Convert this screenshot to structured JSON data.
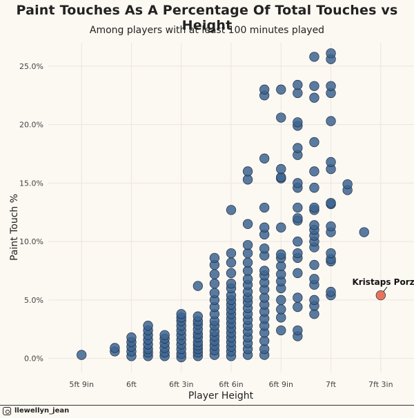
{
  "chart_data": {
    "type": "scatter",
    "title": "Paint Touches As A Percentage Of Total Touches vs Height",
    "subtitle": "Among players with at least 100 minutes played",
    "xlabel": "Player Height",
    "ylabel": "Paint Touch %",
    "x_unit": "inches",
    "xlim": [
      67,
      89
    ],
    "ylim": [
      -1.2,
      27
    ],
    "x_ticks": [
      {
        "value": 69,
        "label": "5ft 9in"
      },
      {
        "value": 72,
        "label": "6ft"
      },
      {
        "value": 75,
        "label": "6ft 3in"
      },
      {
        "value": 78,
        "label": "6ft 6in"
      },
      {
        "value": 81,
        "label": "6ft 9in"
      },
      {
        "value": 84,
        "label": "7ft"
      },
      {
        "value": 87,
        "label": "7ft 3in"
      }
    ],
    "y_ticks": [
      {
        "value": 0,
        "label": "0.0%"
      },
      {
        "value": 5,
        "label": "5.0%"
      },
      {
        "value": 10,
        "label": "10.0%"
      },
      {
        "value": 15,
        "label": "15.0%"
      },
      {
        "value": 20,
        "label": "20.0%"
      },
      {
        "value": 25,
        "label": "25.0%"
      }
    ],
    "grid": true,
    "colors": {
      "points": "#3d6590",
      "highlight": "#e8735a",
      "background": "#fcf8f2"
    },
    "points": [
      [
        69,
        0.3
      ],
      [
        71,
        0.6
      ],
      [
        71,
        0.9
      ],
      [
        72,
        0.2
      ],
      [
        72,
        0.6
      ],
      [
        72,
        1.0
      ],
      [
        72,
        1.4
      ],
      [
        72,
        1.8
      ],
      [
        73,
        0.2
      ],
      [
        73,
        0.5
      ],
      [
        73,
        0.8
      ],
      [
        73,
        1.2
      ],
      [
        73,
        1.6
      ],
      [
        73,
        2.0
      ],
      [
        73,
        2.4
      ],
      [
        73,
        2.8
      ],
      [
        74,
        0.2
      ],
      [
        74,
        0.5
      ],
      [
        74,
        0.9
      ],
      [
        74,
        1.3
      ],
      [
        74,
        1.7
      ],
      [
        74,
        2.0
      ],
      [
        75,
        0.1
      ],
      [
        75,
        0.4
      ],
      [
        75,
        0.8
      ],
      [
        75,
        1.2
      ],
      [
        75,
        1.6
      ],
      [
        75,
        2.0
      ],
      [
        75,
        2.4
      ],
      [
        75,
        2.8
      ],
      [
        75,
        3.2
      ],
      [
        75,
        3.5
      ],
      [
        75,
        3.8
      ],
      [
        76,
        0.2
      ],
      [
        76,
        0.5
      ],
      [
        76,
        0.8
      ],
      [
        76,
        1.1
      ],
      [
        76,
        1.4
      ],
      [
        76,
        1.8
      ],
      [
        76,
        2.1
      ],
      [
        76,
        2.5
      ],
      [
        76,
        2.9
      ],
      [
        76,
        3.2
      ],
      [
        76,
        3.6
      ],
      [
        76,
        6.2
      ],
      [
        77,
        0.3
      ],
      [
        77,
        0.7
      ],
      [
        77,
        1.1
      ],
      [
        77,
        1.5
      ],
      [
        77,
        1.9
      ],
      [
        77,
        2.3
      ],
      [
        77,
        2.8
      ],
      [
        77,
        3.2
      ],
      [
        77,
        3.8
      ],
      [
        77,
        4.4
      ],
      [
        77,
        5.0
      ],
      [
        77,
        5.6
      ],
      [
        77,
        6.4
      ],
      [
        77,
        7.2
      ],
      [
        77,
        8.0
      ],
      [
        77,
        8.6
      ],
      [
        78,
        0.2
      ],
      [
        78,
        0.6
      ],
      [
        78,
        1.0
      ],
      [
        78,
        1.4
      ],
      [
        78,
        1.8
      ],
      [
        78,
        2.2
      ],
      [
        78,
        2.6
      ],
      [
        78,
        3.0
      ],
      [
        78,
        3.4
      ],
      [
        78,
        3.8
      ],
      [
        78,
        4.2
      ],
      [
        78,
        4.6
      ],
      [
        78,
        5.0
      ],
      [
        78,
        5.4
      ],
      [
        78,
        6.0
      ],
      [
        78,
        6.4
      ],
      [
        78,
        7.3
      ],
      [
        78,
        8.2
      ],
      [
        78,
        9.0
      ],
      [
        78,
        12.7
      ],
      [
        79,
        0.3
      ],
      [
        79,
        0.8
      ],
      [
        79,
        1.3
      ],
      [
        79,
        1.8
      ],
      [
        79,
        2.3
      ],
      [
        79,
        2.8
      ],
      [
        79,
        3.3
      ],
      [
        79,
        3.8
      ],
      [
        79,
        4.3
      ],
      [
        79,
        4.8
      ],
      [
        79,
        5.2
      ],
      [
        79,
        5.7
      ],
      [
        79,
        6.3
      ],
      [
        79,
        6.8
      ],
      [
        79,
        7.5
      ],
      [
        79,
        8.2
      ],
      [
        79,
        9.0
      ],
      [
        79,
        9.7
      ],
      [
        79,
        11.5
      ],
      [
        79,
        15.3
      ],
      [
        79,
        16.0
      ],
      [
        80,
        0.3
      ],
      [
        80,
        0.8
      ],
      [
        80,
        1.5
      ],
      [
        80,
        2.2
      ],
      [
        80,
        2.8
      ],
      [
        80,
        3.4
      ],
      [
        80,
        4.0
      ],
      [
        80,
        4.6
      ],
      [
        80,
        5.2
      ],
      [
        80,
        5.9
      ],
      [
        80,
        6.5
      ],
      [
        80,
        7.1
      ],
      [
        80,
        7.5
      ],
      [
        80,
        8.8
      ],
      [
        80,
        9.4
      ],
      [
        80,
        10.6
      ],
      [
        80,
        11.2
      ],
      [
        80,
        12.9
      ],
      [
        80,
        17.1
      ],
      [
        80,
        22.5
      ],
      [
        80,
        23.0
      ],
      [
        81,
        2.4
      ],
      [
        81,
        3.5
      ],
      [
        81,
        4.2
      ],
      [
        81,
        5.0
      ],
      [
        81,
        6.0
      ],
      [
        81,
        6.6
      ],
      [
        81,
        7.2
      ],
      [
        81,
        7.9
      ],
      [
        81,
        8.6
      ],
      [
        81,
        8.9
      ],
      [
        81,
        11.2
      ],
      [
        81,
        15.4
      ],
      [
        81,
        15.5
      ],
      [
        81,
        16.2
      ],
      [
        81,
        20.6
      ],
      [
        81,
        23.0
      ],
      [
        82,
        1.9
      ],
      [
        82,
        2.4
      ],
      [
        82,
        4.4
      ],
      [
        82,
        5.2
      ],
      [
        82,
        7.3
      ],
      [
        82,
        8.6
      ],
      [
        82,
        9.0
      ],
      [
        82,
        10.0
      ],
      [
        82,
        11.8
      ],
      [
        82,
        12.0
      ],
      [
        82,
        12.9
      ],
      [
        82,
        14.6
      ],
      [
        82,
        15.0
      ],
      [
        82,
        17.4
      ],
      [
        82,
        18.0
      ],
      [
        82,
        19.9
      ],
      [
        82,
        20.2
      ],
      [
        82,
        22.7
      ],
      [
        82,
        23.4
      ],
      [
        83,
        3.8
      ],
      [
        83,
        4.5
      ],
      [
        83,
        5.0
      ],
      [
        83,
        6.3
      ],
      [
        83,
        6.8
      ],
      [
        83,
        8.0
      ],
      [
        83,
        9.5
      ],
      [
        83,
        10.0
      ],
      [
        83,
        10.5
      ],
      [
        83,
        11.0
      ],
      [
        83,
        11.4
      ],
      [
        83,
        12.7
      ],
      [
        83,
        12.9
      ],
      [
        83,
        14.6
      ],
      [
        83,
        16.0
      ],
      [
        83,
        18.5
      ],
      [
        83,
        22.3
      ],
      [
        83,
        23.3
      ],
      [
        83,
        25.8
      ],
      [
        84,
        5.4
      ],
      [
        84,
        5.7
      ],
      [
        84,
        8.3
      ],
      [
        84,
        8.5
      ],
      [
        84,
        9.0
      ],
      [
        84,
        10.8
      ],
      [
        84,
        11.3
      ],
      [
        84,
        13.2
      ],
      [
        84,
        13.3
      ],
      [
        84,
        16.2
      ],
      [
        84,
        16.8
      ],
      [
        84,
        20.3
      ],
      [
        84,
        22.7
      ],
      [
        84,
        23.3
      ],
      [
        84,
        25.6
      ],
      [
        84,
        26.1
      ],
      [
        85,
        14.4
      ],
      [
        85,
        14.9
      ],
      [
        86,
        10.8
      ]
    ],
    "highlight": {
      "label": "Kristaps Porzingis",
      "x": 87,
      "y": 5.4
    }
  },
  "footer": {
    "handle": "llewellyn_jean"
  }
}
